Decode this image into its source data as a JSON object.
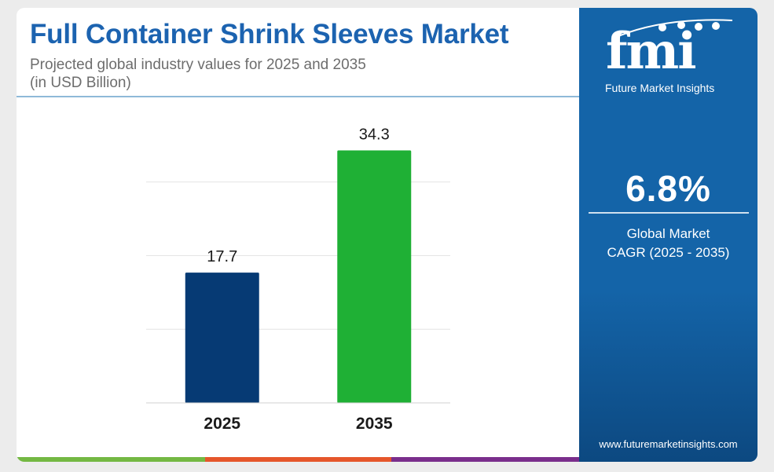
{
  "header": {
    "title": "Full Container Shrink Sleeves Market",
    "subtitle_line1": "Projected global industry values for 2025 and 2035",
    "subtitle_line2": "(in USD Billion)"
  },
  "chart_data": {
    "type": "bar",
    "categories": [
      "2025",
      "2035"
    ],
    "values": [
      17.7,
      34.3
    ],
    "value_labels": [
      "17.7",
      "34.3"
    ],
    "bar_colors": [
      "#063a74",
      "#1fb035"
    ],
    "ylim": [
      0,
      40
    ],
    "grid": true,
    "gridline_values": [
      0,
      10,
      20,
      30
    ]
  },
  "side_panel": {
    "logo_text": "fmi",
    "logo_caption": "Future Market Insights",
    "cagr_value": "6.8%",
    "cagr_label_line1": "Global Market",
    "cagr_label_line2": "CAGR (2025 - 2035)",
    "website": "www.futuremarketinsights.com",
    "background_color": "#1464a8"
  },
  "footer_stripe_colors": [
    "#74b843",
    "#e5562b",
    "#7a2e8c"
  ]
}
